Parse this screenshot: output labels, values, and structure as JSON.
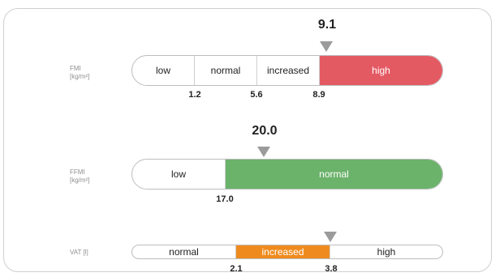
{
  "colors": {
    "high": "#e45a63",
    "normal": "#6bb26b",
    "increased": "#ef8b1e",
    "marker": "#9b9b9b",
    "border": "#cfcfcf"
  },
  "fmi": {
    "label_line1": "FMI",
    "label_line2": "[kg/m²]",
    "value": "9.1",
    "segments": [
      "low",
      "normal",
      "increased",
      "high"
    ],
    "thresholds": [
      "1.2",
      "5.6",
      "8.9"
    ]
  },
  "ffmi": {
    "label_line1": "FFMI",
    "label_line2": "[kg/m²]",
    "value": "20.0",
    "segments": [
      "low",
      "normal"
    ],
    "thresholds": [
      "17.0"
    ]
  },
  "vat": {
    "label": "VAT [l]",
    "segments": [
      "normal",
      "increased",
      "high"
    ],
    "thresholds": [
      "2.1",
      "3.8"
    ]
  }
}
